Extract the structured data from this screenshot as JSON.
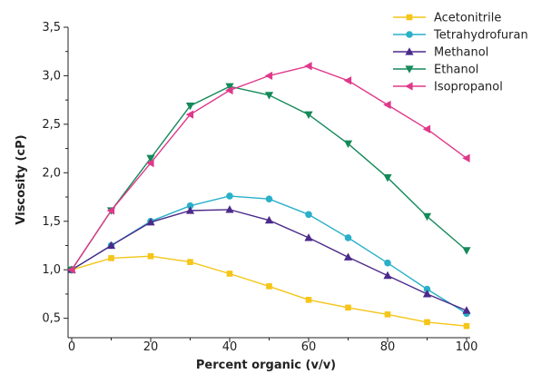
{
  "chart_data": {
    "type": "line",
    "xlabel": "Percent organic (v/v)",
    "ylabel": "Viscosity (cP)",
    "xlim": [
      0,
      100
    ],
    "ylim": [
      0.3,
      3.5
    ],
    "xticks": [
      0,
      20,
      40,
      60,
      80,
      100
    ],
    "yticks": [
      0.5,
      1.0,
      1.5,
      2.0,
      2.5,
      3.0,
      3.5
    ],
    "xtick_labels": [
      "0",
      "20",
      "40",
      "60",
      "80",
      "100"
    ],
    "ytick_labels": [
      "0,5",
      "1,0",
      "1,5",
      "2,0",
      "2,5",
      "3,0",
      "3,5"
    ],
    "legend_position": "top-right",
    "grid": false,
    "x": [
      0,
      10,
      20,
      30,
      40,
      50,
      60,
      70,
      80,
      90,
      100
    ],
    "series": [
      {
        "name": "Acetonitrile",
        "color": "#f5c518",
        "marker": "square",
        "values": [
          1.0,
          1.12,
          1.14,
          1.08,
          0.96,
          0.83,
          0.69,
          0.61,
          0.54,
          0.46,
          0.42
        ]
      },
      {
        "name": "Tetrahydrofuran",
        "color": "#2ab0c8",
        "marker": "circle",
        "values": [
          1.0,
          1.25,
          1.5,
          1.66,
          1.76,
          1.73,
          1.57,
          1.33,
          1.07,
          0.8,
          0.55
        ]
      },
      {
        "name": "Methanol",
        "color": "#4b2a8a",
        "marker": "triangle-up",
        "values": [
          1.0,
          1.25,
          1.49,
          1.61,
          1.62,
          1.51,
          1.33,
          1.13,
          0.94,
          0.75,
          0.58
        ]
      },
      {
        "name": "Ethanol",
        "color": "#158a5a",
        "marker": "triangle-down",
        "values": [
          1.0,
          1.61,
          2.15,
          2.69,
          2.89,
          2.8,
          2.6,
          2.3,
          1.95,
          1.55,
          1.2
        ]
      },
      {
        "name": "Isopropanol",
        "color": "#e0388a",
        "marker": "triangle-left",
        "values": [
          1.0,
          1.61,
          2.1,
          2.6,
          2.85,
          3.0,
          3.1,
          2.95,
          2.7,
          2.45,
          2.15
        ]
      }
    ]
  }
}
